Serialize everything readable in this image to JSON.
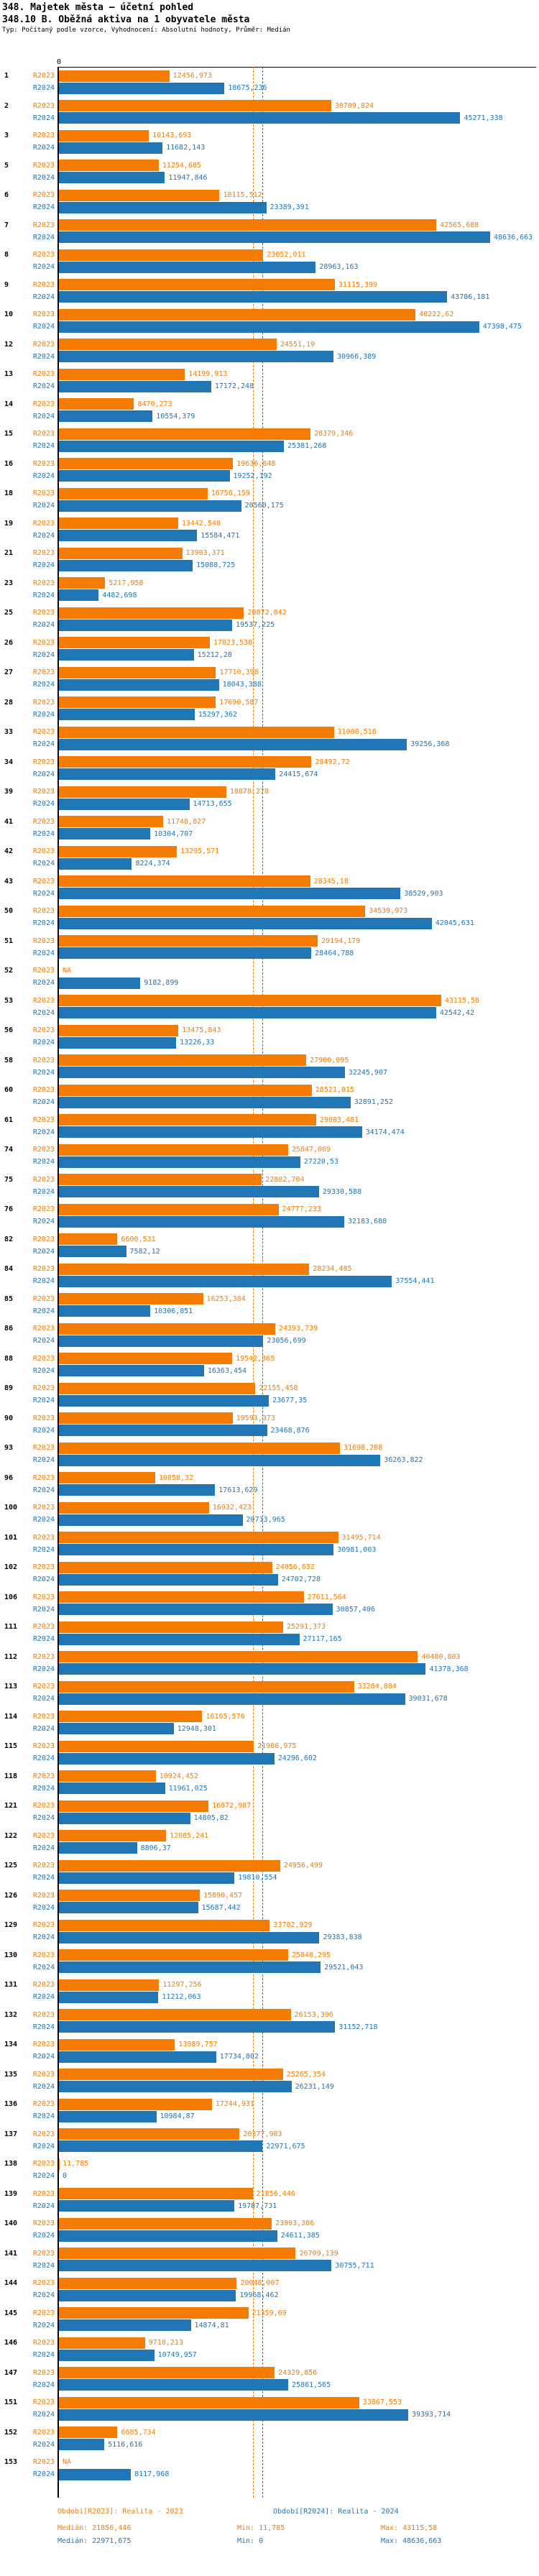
{
  "header": {
    "title": "348. Majetek města – účetní pohled",
    "subtitle": "348.10 B. Oběžná aktiva na 1 obyvatele města",
    "meta": "Typ: Počítaný podle vzorce, Vyhodnocení: Absolutní hodnoty, Průměr: Medián"
  },
  "chart_data": {
    "type": "bar",
    "orientation": "horizontal",
    "value_decimal_separator": ",",
    "na_text": "NA",
    "axis": {
      "zero_label": "0",
      "min": 0,
      "max": 48636.663
    },
    "series_labels": [
      "R2023",
      "R2024"
    ],
    "colors": {
      "r2023": "#f57c00",
      "r2024": "#2176b5"
    },
    "medians": {
      "r2023": 21856.446,
      "r2024": 22971.675
    },
    "groups": [
      [
        "1",
        "12456,973",
        "18675,236"
      ],
      [
        "2",
        "30709,824",
        "45271,338"
      ],
      [
        "3",
        "10143,693",
        "11682,143"
      ],
      [
        "5",
        "11254,685",
        "11947,846"
      ],
      [
        "6",
        "18115,512",
        "23389,391"
      ],
      [
        "7",
        "42565,688",
        "48636,663"
      ],
      [
        "8",
        "23052,011",
        "28963,163"
      ],
      [
        "9",
        "31115,399",
        "43786,181"
      ],
      [
        "10",
        "40222,62",
        "47398,475"
      ],
      [
        "12",
        "24551,19",
        "30966,389"
      ],
      [
        "13",
        "14199,913",
        "17172,248"
      ],
      [
        "14",
        "8470,273",
        "10554,379"
      ],
      [
        "15",
        "28379,346",
        "25381,268"
      ],
      [
        "16",
        "19636,848",
        "19252,192"
      ],
      [
        "18",
        "16756,159",
        "20560,175"
      ],
      [
        "19",
        "13442,548",
        "15584,471"
      ],
      [
        "21",
        "13903,371",
        "15088,725"
      ],
      [
        "23",
        "5217,958",
        "4482,698"
      ],
      [
        "25",
        "20872,042",
        "19537,225"
      ],
      [
        "26",
        "17023,538",
        "15212,28"
      ],
      [
        "27",
        "17710,398",
        "18043,388"
      ],
      [
        "28",
        "17690,587",
        "15297,362"
      ],
      [
        "33",
        "31008,518",
        "39256,368"
      ],
      [
        "34",
        "28492,72",
        "24415,674"
      ],
      [
        "39",
        "18878,278",
        "14713,655"
      ],
      [
        "41",
        "11748,827",
        "10304,707"
      ],
      [
        "42",
        "13295,571",
        "8224,374"
      ],
      [
        "43",
        "28345,18",
        "38529,903"
      ],
      [
        "50",
        "34539,973",
        "42045,631"
      ],
      [
        "51",
        "29194,179",
        "28464,788"
      ],
      [
        "52",
        "NA",
        "9182,899"
      ],
      [
        "53",
        "43115,58",
        "42542,42"
      ],
      [
        "56",
        "13475,843",
        "13226,33"
      ],
      [
        "58",
        "27900,095",
        "32245,907"
      ],
      [
        "60",
        "28521,015",
        "32891,252"
      ],
      [
        "61",
        "29003,481",
        "34174,474"
      ],
      [
        "74",
        "25847,069",
        "27220,53"
      ],
      [
        "75",
        "22882,704",
        "29330,588"
      ],
      [
        "76",
        "24777,233",
        "32183,688"
      ],
      [
        "82",
        "6600,531",
        "7582,12"
      ],
      [
        "84",
        "28234,485",
        "37554,441"
      ],
      [
        "85",
        "16253,384",
        "10306,851"
      ],
      [
        "86",
        "24393,739",
        "23056,699"
      ],
      [
        "88",
        "19542,365",
        "16363,454"
      ],
      [
        "89",
        "22155,458",
        "23677,35"
      ],
      [
        "90",
        "19593,373",
        "23468,876"
      ],
      [
        "93",
        "31698,288",
        "36263,822"
      ],
      [
        "96",
        "10858,32",
        "17613,629"
      ],
      [
        "100",
        "16932,423",
        "20713,965"
      ],
      [
        "101",
        "31495,714",
        "30981,003"
      ],
      [
        "102",
        "24056,632",
        "24702,728"
      ],
      [
        "106",
        "27611,564",
        "30857,406"
      ],
      [
        "111",
        "25291,373",
        "27117,165"
      ],
      [
        "112",
        "40480,803",
        "41378,368"
      ],
      [
        "113",
        "33284,884",
        "39031,678"
      ],
      [
        "114",
        "16165,576",
        "12948,301"
      ],
      [
        "115",
        "21986,975",
        "24296,602"
      ],
      [
        "118",
        "10924,452",
        "11961,025"
      ],
      [
        "121",
        "16872,987",
        "14805,82"
      ],
      [
        "122",
        "12085,241",
        "8806,37"
      ],
      [
        "125",
        "24956,499",
        "19810,554"
      ],
      [
        "126",
        "15890,457",
        "15687,442"
      ],
      [
        "129",
        "23782,929",
        "29383,838"
      ],
      [
        "130",
        "25848,295",
        "29521,043"
      ],
      [
        "131",
        "11297,256",
        "11212,063"
      ],
      [
        "132",
        "26153,396",
        "31152,718"
      ],
      [
        "134",
        "13089,757",
        "17734,802"
      ],
      [
        "135",
        "25265,354",
        "26231,149"
      ],
      [
        "136",
        "17244,931",
        "10984,87"
      ],
      [
        "137",
        "20377,903",
        "22971,675"
      ],
      [
        "138",
        "11,785",
        "0"
      ],
      [
        "139",
        "21856,446",
        "19787,731"
      ],
      [
        "140",
        "23993,386",
        "24611,385"
      ],
      [
        "141",
        "26709,139",
        "30755,711"
      ],
      [
        "144",
        "20048,007",
        "19968,462"
      ],
      [
        "145",
        "21359,69",
        "14874,81"
      ],
      [
        "146",
        "9710,213",
        "10749,957"
      ],
      [
        "147",
        "24329,856",
        "25861,565"
      ],
      [
        "151",
        "33867,553",
        "39393,714"
      ],
      [
        "152",
        "6605,734",
        "5116,616"
      ],
      [
        "153",
        "NA",
        "8117,968"
      ]
    ]
  },
  "legend": {
    "r2023": {
      "period": "Období[R2023]: Realita - 2023",
      "median": "Medián: 21856,446",
      "min": "Min: 11,785",
      "max": "Max: 43115,58"
    },
    "r2024": {
      "period": "Období[R2024]: Realita - 2024",
      "median": "Medián: 22971,675",
      "min": "Min: 0",
      "max": "Max: 48636,663"
    }
  }
}
